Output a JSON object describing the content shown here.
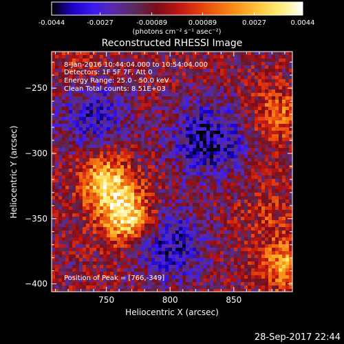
{
  "colors": {
    "background": "#000000",
    "text": "#ffffff",
    "colormap": [
      "#000000",
      "#1a00c8",
      "#3c1cf0",
      "#5a2aa6",
      "#5a2a5a",
      "#7a0d1a",
      "#b81414",
      "#e23a0e",
      "#f26a12",
      "#fa9a1c",
      "#ffcc40",
      "#ffef80",
      "#ffffff"
    ]
  },
  "colorbar": {
    "ticks": [
      "-0.0044",
      "-0.0027",
      "-0.00089",
      "0.00089",
      "0.0027",
      "0.0044"
    ],
    "tick_values": [
      -0.0044,
      -0.0027,
      -0.00089,
      0.00089,
      0.0027,
      0.0044
    ],
    "range": [
      -0.0044,
      0.0044
    ],
    "unit_label": "(photons cm⁻² s⁻¹ asec⁻²)"
  },
  "chart_data": {
    "type": "heatmap",
    "title": "Reconstructed RHESSI Image",
    "xlabel": "Heliocentric X (arcsec)",
    "ylabel": "Heliocentric Y (arcsec)",
    "xlim": [
      707,
      896
    ],
    "ylim": [
      -406,
      -222
    ],
    "x_ticks": [
      750,
      800,
      850
    ],
    "y_ticks": [
      -250,
      -300,
      -350,
      -400
    ],
    "value_range": [
      -0.0044,
      0.0044
    ],
    "sources": [
      {
        "x": 766,
        "y": -349,
        "peak": 0.0044
      },
      {
        "x": 750,
        "y": -322,
        "peak": 0.004
      },
      {
        "x": 885,
        "y": -270,
        "peak": 0.0022
      },
      {
        "x": 890,
        "y": -385,
        "peak": 0.003
      },
      {
        "x": 875,
        "y": -345,
        "peak": 0.001
      },
      {
        "x": 730,
        "y": -235,
        "peak": 0.001
      }
    ],
    "troughs": [
      {
        "x": 830,
        "y": -290,
        "depth": -0.003
      },
      {
        "x": 740,
        "y": -270,
        "depth": -0.0022
      },
      {
        "x": 800,
        "y": -370,
        "depth": -0.0025
      }
    ],
    "legend_lines": [
      " 8-Jan-2016 10:44:04.000 to 10:54:04.000",
      "Detectors: 1F 5F 7F, Att 0",
      "Energy Range: 25.0 - 50.0 keV",
      "Clean    Total counts: 8.51E+03"
    ],
    "annotation": "Position of Peak = [766,-349]"
  },
  "timestamp": "28-Sep-2017 22:44"
}
